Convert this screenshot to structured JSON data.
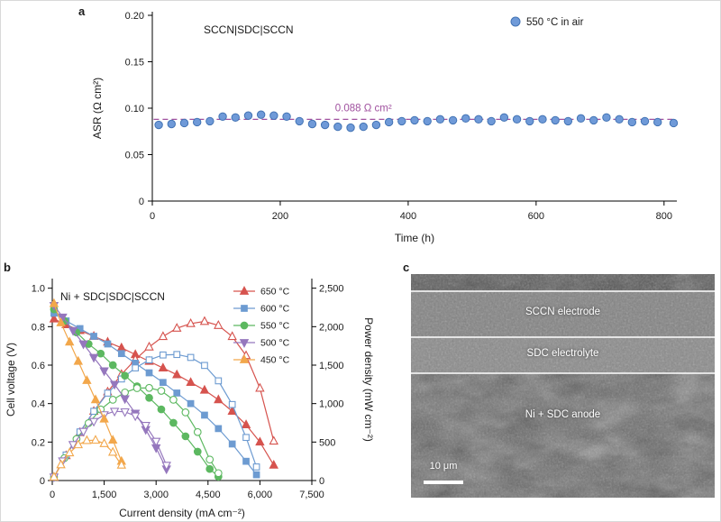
{
  "panels": {
    "a": "a",
    "b": "b",
    "c": "c"
  },
  "chart_data": [
    {
      "id": "chart-a",
      "type": "scatter",
      "title": "SCCN|SDC|SCCN",
      "xlabel": "Time (h)",
      "ylabel": "ASR (Ω cm²)",
      "xlim": [
        0,
        820
      ],
      "ylim": [
        0,
        0.2
      ],
      "xticks": {
        "values": [
          0,
          200,
          400,
          600,
          800
        ],
        "labels": [
          "0",
          "200",
          "400",
          "600",
          "800"
        ]
      },
      "yticks": {
        "values": [
          0,
          0.05,
          0.1,
          0.15,
          0.2
        ],
        "labels": [
          "0",
          "0.05",
          "0.10",
          "0.15",
          "0.20"
        ]
      },
      "legend": [
        {
          "label": "550 °C in air",
          "marker": "circle",
          "color": "#6f9ad8",
          "edge": "#4273b4"
        }
      ],
      "legend_position": "top-right",
      "grid": false,
      "marker_color": "#6f9ad8",
      "marker_edge": "#4273b4",
      "ref_line": {
        "y": 0.088,
        "label": "0.088 Ω cm²",
        "color": "#a0519f"
      },
      "x": [
        10,
        30,
        50,
        70,
        90,
        110,
        130,
        150,
        170,
        190,
        210,
        230,
        250,
        270,
        290,
        310,
        330,
        350,
        370,
        390,
        410,
        430,
        450,
        470,
        490,
        510,
        530,
        550,
        570,
        590,
        610,
        630,
        650,
        670,
        690,
        710,
        730,
        750,
        770,
        790,
        815
      ],
      "y": [
        0.082,
        0.083,
        0.084,
        0.085,
        0.086,
        0.091,
        0.09,
        0.092,
        0.093,
        0.092,
        0.091,
        0.086,
        0.083,
        0.082,
        0.08,
        0.079,
        0.08,
        0.082,
        0.085,
        0.086,
        0.087,
        0.086,
        0.088,
        0.087,
        0.089,
        0.088,
        0.086,
        0.09,
        0.088,
        0.086,
        0.088,
        0.087,
        0.086,
        0.089,
        0.087,
        0.09,
        0.088,
        0.085,
        0.086,
        0.085,
        0.084
      ]
    },
    {
      "id": "chart-b",
      "type": "line",
      "title": "Ni + SDC|SDC|SCCN",
      "xlabel": "Current density (mA cm⁻²)",
      "ylabel_left": "Cell voltage (V)",
      "ylabel_right": "Power density (mW cm⁻²)",
      "xlim": [
        0,
        7500
      ],
      "ylim_left": [
        0,
        1.05
      ],
      "ylim_right": [
        0,
        2625
      ],
      "xticks": {
        "values": [
          0,
          1500,
          3000,
          4500,
          6000,
          7500
        ],
        "labels": [
          "0",
          "1,500",
          "3,000",
          "4,500",
          "6,000",
          "7,500"
        ]
      },
      "yticks_left": {
        "values": [
          0,
          0.2,
          0.4,
          0.6,
          0.8,
          1.0
        ],
        "labels": [
          "0",
          "0.2",
          "0.4",
          "0.6",
          "0.8",
          "1.0"
        ]
      },
      "yticks_right": {
        "values": [
          0,
          500,
          1000,
          1500,
          2000,
          2500
        ],
        "labels": [
          "0",
          "500",
          "1,000",
          "1,500",
          "2,000",
          "2,500"
        ]
      },
      "legend_position": "top-right",
      "grid": false,
      "series": [
        {
          "name": "650 °C",
          "color": "#d6534e",
          "marker": "triangle-up",
          "current": [
            50,
            400,
            800,
            1200,
            1600,
            2000,
            2400,
            2800,
            3200,
            3600,
            4000,
            4400,
            4800,
            5200,
            5600,
            6000,
            6400
          ],
          "voltage": [
            0.84,
            0.81,
            0.78,
            0.75,
            0.72,
            0.69,
            0.655,
            0.62,
            0.585,
            0.55,
            0.51,
            0.47,
            0.42,
            0.36,
            0.29,
            0.2,
            0.08
          ],
          "power": [
            42,
            324,
            624,
            900,
            1152,
            1380,
            1572,
            1736,
            1872,
            1980,
            2040,
            2068,
            2016,
            1872,
            1624,
            1200,
            512
          ]
        },
        {
          "name": "600 °C",
          "color": "#6d9bd1",
          "marker": "square",
          "current": [
            50,
            400,
            800,
            1200,
            1600,
            2000,
            2400,
            2800,
            3200,
            3600,
            4000,
            4400,
            4800,
            5200,
            5600,
            5900
          ],
          "voltage": [
            0.87,
            0.83,
            0.79,
            0.75,
            0.71,
            0.66,
            0.61,
            0.56,
            0.51,
            0.455,
            0.4,
            0.34,
            0.27,
            0.19,
            0.1,
            0.03
          ],
          "power": [
            44,
            332,
            632,
            900,
            1136,
            1320,
            1464,
            1568,
            1632,
            1638,
            1600,
            1496,
            1296,
            988,
            560,
            177
          ]
        },
        {
          "name": "550 °C",
          "color": "#5cb860",
          "marker": "circle",
          "current": [
            50,
            350,
            700,
            1050,
            1400,
            1750,
            2100,
            2450,
            2800,
            3150,
            3500,
            3850,
            4200,
            4550,
            4800
          ],
          "voltage": [
            0.89,
            0.83,
            0.77,
            0.71,
            0.66,
            0.6,
            0.545,
            0.49,
            0.43,
            0.37,
            0.3,
            0.23,
            0.15,
            0.06,
            0.02
          ],
          "power": [
            45,
            291,
            539,
            746,
            924,
            1050,
            1145,
            1201,
            1204,
            1166,
            1050,
            886,
            630,
            273,
            96
          ]
        },
        {
          "name": "500 °C",
          "color": "#9577bd",
          "marker": "triangle-down",
          "current": [
            50,
            300,
            600,
            900,
            1200,
            1500,
            1800,
            2100,
            2400,
            2700,
            3000,
            3300
          ],
          "voltage": [
            0.91,
            0.85,
            0.78,
            0.71,
            0.64,
            0.57,
            0.5,
            0.425,
            0.35,
            0.265,
            0.17,
            0.06
          ],
          "power": [
            46,
            255,
            468,
            639,
            768,
            855,
            900,
            893,
            840,
            716,
            510,
            198
          ]
        },
        {
          "name": "450 °C",
          "color": "#f2a74b",
          "marker": "triangle-up",
          "current": [
            50,
            250,
            500,
            750,
            1000,
            1250,
            1500,
            1750,
            2000
          ],
          "voltage": [
            0.92,
            0.82,
            0.72,
            0.62,
            0.52,
            0.42,
            0.32,
            0.21,
            0.1
          ],
          "power": [
            46,
            205,
            360,
            465,
            520,
            525,
            480,
            368,
            200
          ]
        }
      ]
    }
  ],
  "sem": {
    "labels": [
      {
        "text": "SCCN electrode"
      },
      {
        "text": "SDC electrolyte"
      },
      {
        "text": "Ni + SDC anode"
      }
    ],
    "scalebar_label": "10 μm"
  }
}
